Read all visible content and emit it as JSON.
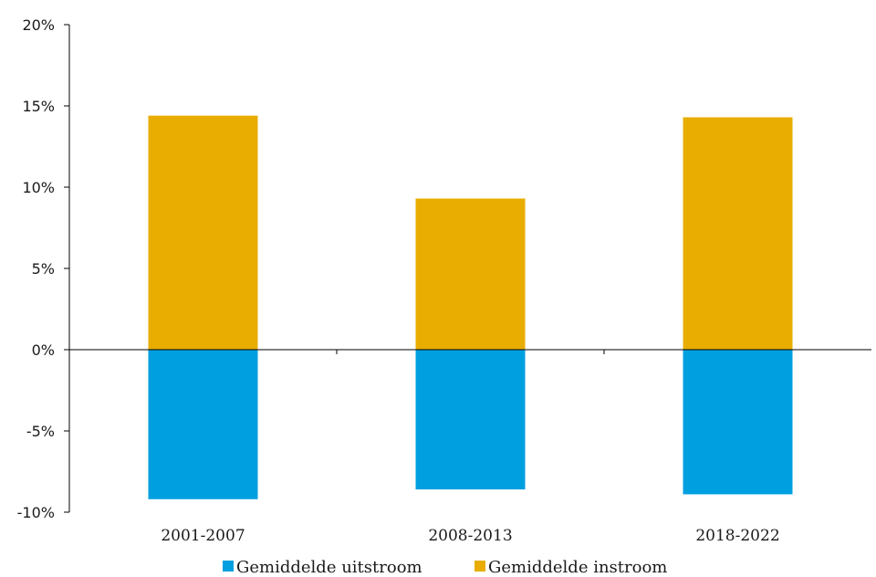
{
  "chart_data": {
    "type": "bar",
    "stacked": true,
    "categories": [
      "2001-2007",
      "2008-2013",
      "2018-2022"
    ],
    "series": [
      {
        "name": "Gemiddelde uitstroom",
        "color": "#009fe0",
        "values": [
          -9.2,
          -8.6,
          -8.9
        ]
      },
      {
        "name": "Gemiddelde instroom",
        "color": "#e8ad00",
        "values": [
          14.4,
          9.3,
          14.3
        ]
      }
    ],
    "ylim": [
      -10,
      20
    ],
    "yticks": [
      20,
      15,
      10,
      5,
      0,
      -5,
      -10
    ],
    "ytick_labels": [
      "20%",
      "15%",
      "10%",
      "5%",
      "0%",
      "-5%",
      "-10%"
    ],
    "grid": false,
    "legend_position": "bottom"
  }
}
